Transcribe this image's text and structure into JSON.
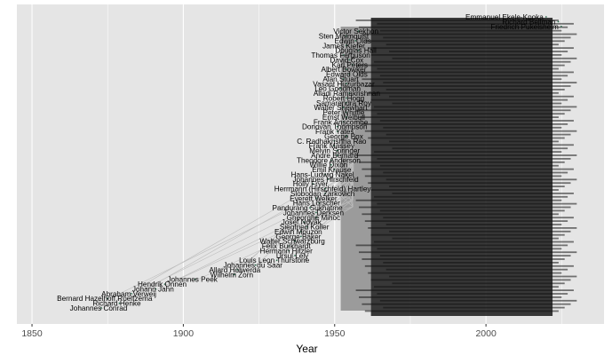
{
  "chart_data": {
    "type": "scatter",
    "title": "",
    "xlabel": "Year",
    "ylabel": "",
    "xlim": [
      1845,
      2039
    ],
    "x_ticks": [
      1850,
      1900,
      1950,
      2000
    ],
    "grid": true,
    "legend": "none",
    "colors": {
      "panel": "#e5e5e5",
      "grid_major": "#ffffff",
      "label_text": "#000000",
      "overplot_fill": "#111111",
      "edge_line": "#bdbdbd",
      "point": "#2e6b4f"
    },
    "points": [
      {
        "label": "Johannes  Conrad",
        "x": 1872
      },
      {
        "label": "Richard Henke",
        "x": 1878
      },
      {
        "label": "Bernard Hazelhoff Roelfzema",
        "x": 1874
      },
      {
        "label": "Abraham Verweij",
        "x": 1882
      },
      {
        "label": "Johann Jahn",
        "x": 1890
      },
      {
        "label": "Hendrik Onnen",
        "x": 1893
      },
      {
        "label": "Johannes Peek",
        "x": 1903
      },
      {
        "label": "Wilhelm Zorn",
        "x": 1916
      },
      {
        "label": "Allard Holwerda",
        "x": 1917
      },
      {
        "label": "Johannes du Saar",
        "x": 1923
      },
      {
        "label": "Louis Leon Thurstone",
        "x": 1930
      },
      {
        "label": "Ursul Lely",
        "x": 1936
      },
      {
        "label": "Hermann Hitzler",
        "x": 1934
      },
      {
        "label": "Felix Burkhardt",
        "x": 1934
      },
      {
        "label": "Walter Schwarzburg",
        "x": 1936
      },
      {
        "label": "George Baker",
        "x": 1938
      },
      {
        "label": "Edwin Mouzon",
        "x": 1938
      },
      {
        "label": "Siegfried Koller",
        "x": 1940
      },
      {
        "label": "Josef  Novák",
        "x": 1939
      },
      {
        "label": "Gheorghe Mihoc",
        "x": 1943
      },
      {
        "label": "Johannes Derksen",
        "x": 1943
      },
      {
        "label": "Pandurang Sukhatme",
        "x": 1941
      },
      {
        "label": "Hans Lörscher",
        "x": 1944
      },
      {
        "label": "Everett Welker",
        "x": 1943
      },
      {
        "label": "Slobodan Zarkovich",
        "x": 1946
      },
      {
        "label": "Herrmann (Hirschfeld) Hartley",
        "x": 1946
      },
      {
        "label": "Holly Fryer",
        "x": 1942
      },
      {
        "label": "Johannes Hirschfeld",
        "x": 1947
      },
      {
        "label": "Hans-Ludwig Nakel",
        "x": 1946
      },
      {
        "label": "Emil Krause",
        "x": 1949
      },
      {
        "label": "Willie Dixon",
        "x": 1948
      },
      {
        "label": "Theodore Anderson",
        "x": 1948
      },
      {
        "label": "Andre Bernard",
        "x": 1950
      },
      {
        "label": "Melvin Springer",
        "x": 1950
      },
      {
        "label": "Frank Massey",
        "x": 1949
      },
      {
        "label": "C. Radhakrishna Rao",
        "x": 1949
      },
      {
        "label": "George Box",
        "x": 1953
      },
      {
        "label": "Frank Yates",
        "x": 1950
      },
      {
        "label": "Donovan Thompson",
        "x": 1950
      },
      {
        "label": "Frank Anscombe",
        "x": 1952
      },
      {
        "label": "Ernst Weibull",
        "x": 1953
      },
      {
        "label": "Peter Whittle",
        "x": 1953
      },
      {
        "label": "Walter Shewhart",
        "x": 1952
      },
      {
        "label": "Samarendra Roy",
        "x": 1953
      },
      {
        "label": "Robert Hogg",
        "x": 1953
      },
      {
        "label": "Alladi Ramakrishnan",
        "x": 1954
      },
      {
        "label": "Leo Goodman",
        "x": 1951
      },
      {
        "label": "Vasant Huzurbazar",
        "x": 1953
      },
      {
        "label": "Alan Stuart",
        "x": 1952
      },
      {
        "label": "Edward Olds",
        "x": 1954
      },
      {
        "label": "Albert Bowker",
        "x": 1953
      },
      {
        "label": "Karl Peters",
        "x": 1955
      },
      {
        "label": "David Cox",
        "x": 1954
      },
      {
        "label": "Thomas Ferguson",
        "x": 1952
      },
      {
        "label": "Douglas Hall",
        "x": 1957
      },
      {
        "label": "James Kiefer",
        "x": 1953
      },
      {
        "label": "Edwin Olds",
        "x": 1956
      },
      {
        "label": "Sten Malmquist",
        "x": 1953
      },
      {
        "label": "Victor Sekhon",
        "x": 1957
      },
      {
        "label": "Friedrich Pukelsheim",
        "x": 2024
      },
      {
        "label": "Richard Bellman",
        "x": 2023
      },
      {
        "label": "Emmanuel Ekele-Kpoka",
        "x": 2019
      }
    ]
  }
}
